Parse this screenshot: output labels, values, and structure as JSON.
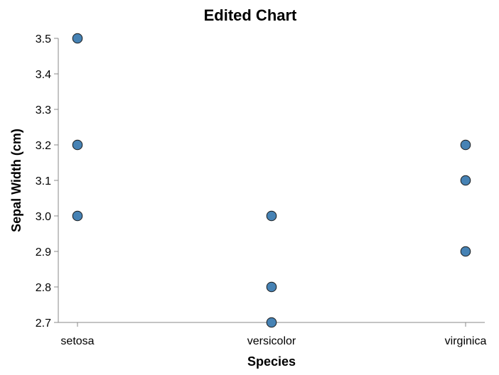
{
  "chart_data": {
    "type": "scatter",
    "title": "Edited Chart",
    "xlabel": "Species",
    "ylabel": "Sepal Width (cm)",
    "categories": [
      "setosa",
      "versicolor",
      "virginica"
    ],
    "ylim": [
      2.7,
      3.5
    ],
    "yticks": [
      "2.7",
      "2.8",
      "2.9",
      "3.0",
      "3.1",
      "3.2",
      "3.3",
      "3.4",
      "3.5"
    ],
    "grid": false,
    "point_color": "#4682b4",
    "point_stroke": "#1a1a1a",
    "points": [
      {
        "x": "setosa",
        "y": 3.5
      },
      {
        "x": "setosa",
        "y": 3.2
      },
      {
        "x": "setosa",
        "y": 3.0
      },
      {
        "x": "versicolor",
        "y": 3.0
      },
      {
        "x": "versicolor",
        "y": 2.8
      },
      {
        "x": "versicolor",
        "y": 2.7
      },
      {
        "x": "virginica",
        "y": 3.2
      },
      {
        "x": "virginica",
        "y": 3.1
      },
      {
        "x": "virginica",
        "y": 2.9
      }
    ]
  }
}
